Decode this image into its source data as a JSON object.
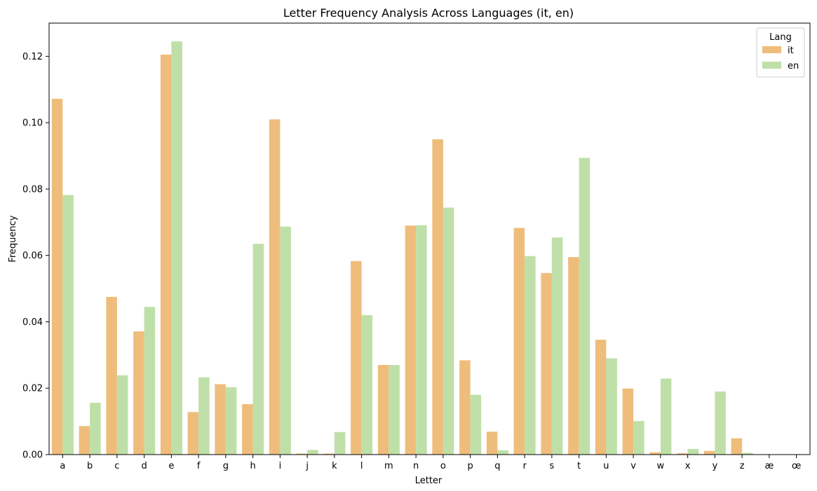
{
  "chart_data": {
    "type": "bar",
    "title": "Letter Frequency Analysis Across Languages (it, en)",
    "xlabel": "Letter",
    "ylabel": "Frequency",
    "categories": [
      "a",
      "b",
      "c",
      "d",
      "e",
      "f",
      "g",
      "h",
      "i",
      "j",
      "k",
      "l",
      "m",
      "n",
      "o",
      "p",
      "q",
      "r",
      "s",
      "t",
      "u",
      "v",
      "w",
      "x",
      "y",
      "z",
      "æ",
      "œ"
    ],
    "ylim": [
      0,
      0.13
    ],
    "yticks": [
      "0.00",
      "0.02",
      "0.04",
      "0.06",
      "0.08",
      "0.10",
      "0.12"
    ],
    "grid": false,
    "legend": {
      "title": "Lang",
      "placement": "top-right"
    },
    "series": [
      {
        "name": "it",
        "color": "#efbd7b",
        "values": [
          0.1072,
          0.0086,
          0.0475,
          0.0371,
          0.1205,
          0.0128,
          0.0212,
          0.0152,
          0.101,
          0.0003,
          0.0003,
          0.0583,
          0.027,
          0.069,
          0.095,
          0.0284,
          0.0069,
          0.0683,
          0.0547,
          0.0595,
          0.0346,
          0.0199,
          0.0007,
          0.0004,
          0.0011,
          0.0049,
          0.0,
          0.0
        ]
      },
      {
        "name": "en",
        "color": "#bfdfa8",
        "values": [
          0.0782,
          0.0156,
          0.0239,
          0.0445,
          0.1245,
          0.0233,
          0.0203,
          0.0635,
          0.0687,
          0.0014,
          0.0068,
          0.042,
          0.027,
          0.0691,
          0.0744,
          0.018,
          0.0013,
          0.0598,
          0.0654,
          0.0894,
          0.029,
          0.0101,
          0.0229,
          0.0017,
          0.019,
          0.0005,
          0.0,
          0.0
        ]
      }
    ]
  }
}
